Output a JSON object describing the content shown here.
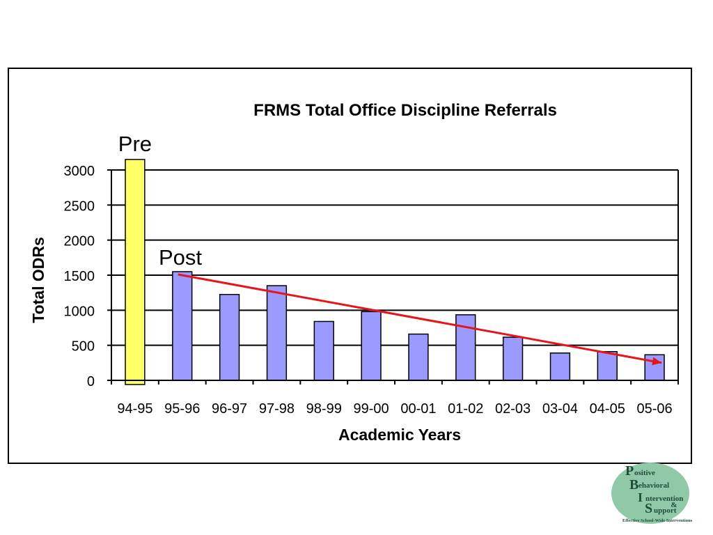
{
  "chart_data": {
    "type": "bar",
    "title": "FRMS Total Office Discipline Referrals",
    "xlabel": "Academic Years",
    "ylabel": "Total ODRs",
    "categories": [
      "94-95",
      "95-96",
      "96-97",
      "97-98",
      "98-99",
      "99-00",
      "00-01",
      "01-02",
      "02-03",
      "03-04",
      "04-05",
      "05-06"
    ],
    "values": [
      3150,
      1550,
      1225,
      1350,
      840,
      980,
      660,
      935,
      615,
      390,
      410,
      365
    ],
    "ylim": [
      0,
      3000
    ],
    "yticks": [
      0,
      500,
      1000,
      1500,
      2000,
      2500,
      3000
    ],
    "ytick_labels": [
      "0",
      "500",
      "1000",
      "1500",
      "2000",
      "2500",
      "3000"
    ],
    "grid": true,
    "highlight_index": 0,
    "colors": {
      "bar": "#9a9aff",
      "highlight": "#ffff66",
      "trend": "#e8141c",
      "gridline": "#000000"
    },
    "annotations": {
      "pre": "Pre",
      "post": "Post"
    },
    "trendline": {
      "from": {
        "category": "95-96",
        "y": 1510
      },
      "to": {
        "category": "05-06",
        "y": 250
      }
    }
  },
  "logo": {
    "letters": [
      "P",
      "B",
      "I",
      "S"
    ],
    "words": [
      "ositive",
      "ehavioral",
      "ntervention",
      "upport"
    ],
    "ampersand": "&",
    "tagline": "Effective School-Wide Interventions",
    "colors": {
      "disc": "#8fc9a8",
      "text": "#1f4d3a"
    }
  }
}
